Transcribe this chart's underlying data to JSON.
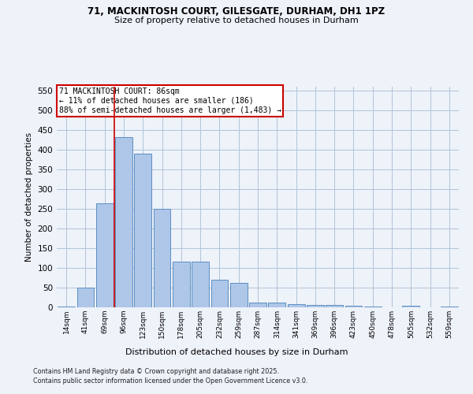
{
  "title_line1": "71, MACKINTOSH COURT, GILESGATE, DURHAM, DH1 1PZ",
  "title_line2": "Size of property relative to detached houses in Durham",
  "xlabel": "Distribution of detached houses by size in Durham",
  "ylabel": "Number of detached properties",
  "categories": [
    "14sqm",
    "41sqm",
    "69sqm",
    "96sqm",
    "123sqm",
    "150sqm",
    "178sqm",
    "205sqm",
    "232sqm",
    "259sqm",
    "287sqm",
    "314sqm",
    "341sqm",
    "369sqm",
    "396sqm",
    "423sqm",
    "450sqm",
    "478sqm",
    "505sqm",
    "532sqm",
    "559sqm"
  ],
  "values": [
    3,
    51,
    265,
    433,
    390,
    250,
    117,
    117,
    70,
    62,
    13,
    13,
    9,
    7,
    6,
    5,
    3,
    0,
    4,
    1,
    3
  ],
  "bar_color": "#aec6e8",
  "bar_edge_color": "#5a8fc2",
  "grid_color": "#b0c4d8",
  "background_color": "#eef2f9",
  "property_line_x": 2.5,
  "annotation_title": "71 MACKINTOSH COURT: 86sqm",
  "annotation_line1": "← 11% of detached houses are smaller (186)",
  "annotation_line2": "88% of semi-detached houses are larger (1,483) →",
  "annotation_box_color": "#ffffff",
  "annotation_box_edge_color": "#cc0000",
  "red_line_color": "#cc0000",
  "ylim": [
    0,
    560
  ],
  "yticks": [
    0,
    50,
    100,
    150,
    200,
    250,
    300,
    350,
    400,
    450,
    500,
    550
  ],
  "footer_line1": "Contains HM Land Registry data © Crown copyright and database right 2025.",
  "footer_line2": "Contains public sector information licensed under the Open Government Licence v3.0."
}
